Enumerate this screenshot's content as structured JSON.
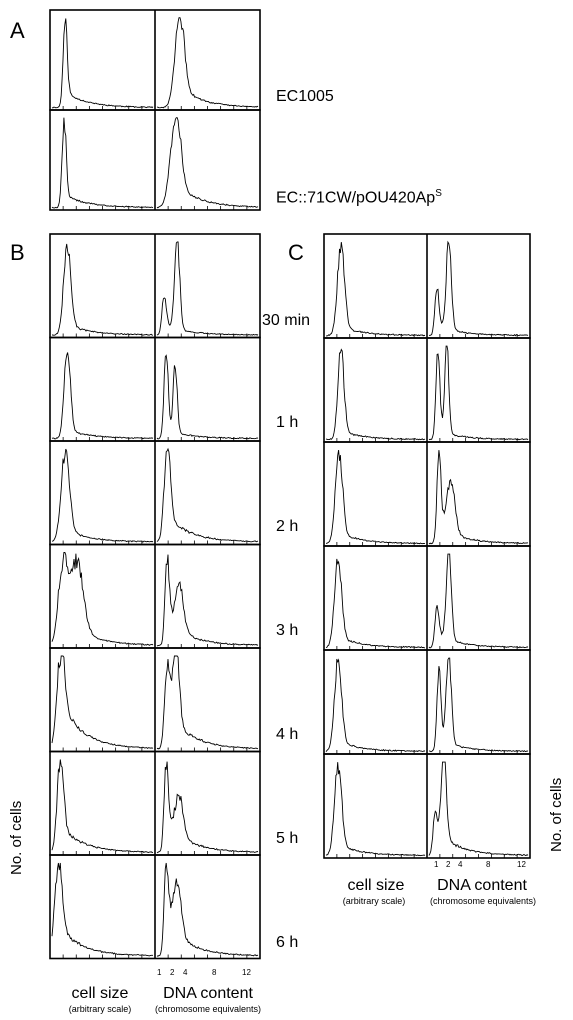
{
  "panel_labels": {
    "a": "A",
    "b": "B",
    "c": "C"
  },
  "strain_labels": [
    "EC1005",
    "EC::71CW/pOU420Ap"
  ],
  "strain_sup": "S",
  "time_points": [
    "30 min",
    "1 h",
    "2 h",
    "3 h",
    "4 h",
    "5 h",
    "6 h"
  ],
  "axes": {
    "x_left_label": "cell size",
    "x_left_sub": "(arbitrary scale)",
    "x_right_label": "DNA content",
    "x_right_sub": "(chromosome equivalents)",
    "y_label": "No. of cells",
    "dna_ticks": [
      "1",
      "2",
      "4",
      "8",
      "12"
    ]
  },
  "chart_data": [
    {
      "type": "area",
      "panel": "A",
      "row": "EC1005",
      "series": [
        {
          "name": "cell size",
          "peaks": [
            [
              0.13,
              1.0,
              0.02
            ]
          ],
          "tail": 0.18
        },
        {
          "name": "DNA content",
          "peaks": [
            [
              0.22,
              1.0,
              0.045
            ]
          ],
          "tail": 0.25
        }
      ]
    },
    {
      "type": "area",
      "panel": "A",
      "row": "EC::71CW/pOU420Ap",
      "series": [
        {
          "name": "cell size",
          "peaks": [
            [
              0.12,
              1.0,
              0.02
            ]
          ],
          "tail": 0.15
        },
        {
          "name": "DNA content",
          "peaks": [
            [
              0.18,
              1.0,
              0.05
            ]
          ],
          "tail": 0.3
        }
      ]
    },
    {
      "type": "area",
      "panel": "B",
      "row": "30 min",
      "series": [
        {
          "name": "cell size",
          "peaks": [
            [
              0.15,
              1.0,
              0.035
            ]
          ],
          "tail": 0.12
        },
        {
          "name": "DNA content",
          "peaks": [
            [
              0.07,
              0.45,
              0.02
            ],
            [
              0.2,
              1.0,
              0.025
            ]
          ],
          "tail": 0.12
        }
      ]
    },
    {
      "type": "area",
      "panel": "B",
      "row": "1 h",
      "series": [
        {
          "name": "cell size",
          "peaks": [
            [
              0.15,
              1.0,
              0.03
            ]
          ],
          "tail": 0.1
        },
        {
          "name": "DNA content",
          "peaks": [
            [
              0.09,
              1.0,
              0.02
            ],
            [
              0.18,
              0.75,
              0.02
            ]
          ],
          "tail": 0.1
        }
      ]
    },
    {
      "type": "area",
      "panel": "B",
      "row": "2 h",
      "series": [
        {
          "name": "cell size",
          "peaks": [
            [
              0.13,
              1.0,
              0.04
            ]
          ],
          "tail": 0.15
        },
        {
          "name": "DNA content",
          "peaks": [
            [
              0.1,
              1.0,
              0.03
            ]
          ],
          "tail": 0.3
        }
      ]
    },
    {
      "type": "area",
      "panel": "B",
      "row": "3 h",
      "series": [
        {
          "name": "cell size",
          "peaks": [
            [
              0.1,
              0.85,
              0.04
            ],
            [
              0.25,
              0.75,
              0.06
            ]
          ],
          "tail": 0.4
        }
      ]
    },
    {
      "type": "area",
      "panel": "B",
      "row": "3 h",
      "series": [
        {
          "name": "DNA content",
          "peaks": [
            [
              0.1,
              1.0,
              0.02
            ],
            [
              0.22,
              0.55,
              0.04
            ]
          ],
          "tail": 0.3
        }
      ]
    },
    {
      "type": "area",
      "panel": "B",
      "row": "4 h",
      "series": [
        {
          "name": "cell size",
          "peaks": [
            [
              0.08,
              1.0,
              0.035
            ]
          ],
          "tail": 0.55
        },
        {
          "name": "DNA content",
          "peaks": [
            [
              0.1,
              0.9,
              0.025
            ],
            [
              0.19,
              0.85,
              0.03
            ]
          ],
          "tail": 0.45
        }
      ]
    },
    {
      "type": "area",
      "panel": "B",
      "row": "5 h",
      "series": [
        {
          "name": "cell size",
          "peaks": [
            [
              0.08,
              1.0,
              0.03
            ]
          ],
          "tail": 0.3
        },
        {
          "name": "DNA content",
          "peaks": [
            [
              0.09,
              1.0,
              0.02
            ],
            [
              0.22,
              0.45,
              0.04
            ]
          ],
          "tail": 0.35
        }
      ]
    },
    {
      "type": "area",
      "panel": "B",
      "row": "6 h",
      "series": [
        {
          "name": "cell size",
          "peaks": [
            [
              0.06,
              1.0,
              0.035
            ]
          ],
          "tail": 0.35
        },
        {
          "name": "DNA content",
          "peaks": [
            [
              0.09,
              1.0,
              0.02
            ],
            [
              0.2,
              0.6,
              0.04
            ]
          ],
          "tail": 0.4
        }
      ]
    },
    {
      "type": "area",
      "panel": "C",
      "row": "30 min",
      "series": [
        {
          "name": "cell size",
          "peaks": [
            [
              0.15,
              1.0,
              0.035
            ]
          ],
          "tail": 0.1
        },
        {
          "name": "DNA content",
          "peaks": [
            [
              0.08,
              0.55,
              0.02
            ],
            [
              0.2,
              1.0,
              0.025
            ]
          ],
          "tail": 0.12
        }
      ]
    },
    {
      "type": "area",
      "panel": "C",
      "row": "1 h",
      "series": [
        {
          "name": "cell size",
          "peaks": [
            [
              0.15,
              1.0,
              0.03
            ]
          ],
          "tail": 0.1
        },
        {
          "name": "DNA content",
          "peaks": [
            [
              0.09,
              0.95,
              0.02
            ],
            [
              0.18,
              1.0,
              0.02
            ]
          ],
          "tail": 0.1
        }
      ]
    },
    {
      "type": "area",
      "panel": "C",
      "row": "2 h",
      "series": [
        {
          "name": "cell size",
          "peaks": [
            [
              0.13,
              1.0,
              0.035
            ]
          ],
          "tail": 0.12
        },
        {
          "name": "DNA content",
          "peaks": [
            [
              0.1,
              1.0,
              0.02
            ],
            [
              0.22,
              0.6,
              0.04
            ]
          ],
          "tail": 0.2
        }
      ]
    },
    {
      "type": "area",
      "panel": "C",
      "row": "3 h",
      "series": [
        {
          "name": "cell size",
          "peaks": [
            [
              0.12,
              1.0,
              0.035
            ]
          ],
          "tail": 0.12
        },
        {
          "name": "DNA content",
          "peaks": [
            [
              0.08,
              0.45,
              0.02
            ],
            [
              0.2,
              1.0,
              0.025
            ]
          ],
          "tail": 0.15
        }
      ]
    },
    {
      "type": "area",
      "panel": "C",
      "row": "4 h",
      "series": [
        {
          "name": "cell size",
          "peaks": [
            [
              0.12,
              1.0,
              0.035
            ]
          ],
          "tail": 0.12
        },
        {
          "name": "DNA content",
          "peaks": [
            [
              0.1,
              0.9,
              0.02
            ],
            [
              0.2,
              1.0,
              0.025
            ]
          ],
          "tail": 0.15
        }
      ]
    },
    {
      "type": "area",
      "panel": "C",
      "row": "5 h",
      "series": [
        {
          "name": "cell size",
          "peaks": [
            [
              0.12,
              1.0,
              0.035
            ]
          ],
          "tail": 0.12
        },
        {
          "name": "DNA content",
          "peaks": [
            [
              0.06,
              0.45,
              0.02
            ],
            [
              0.15,
              1.0,
              0.025
            ]
          ],
          "tail": 0.3
        }
      ]
    }
  ]
}
